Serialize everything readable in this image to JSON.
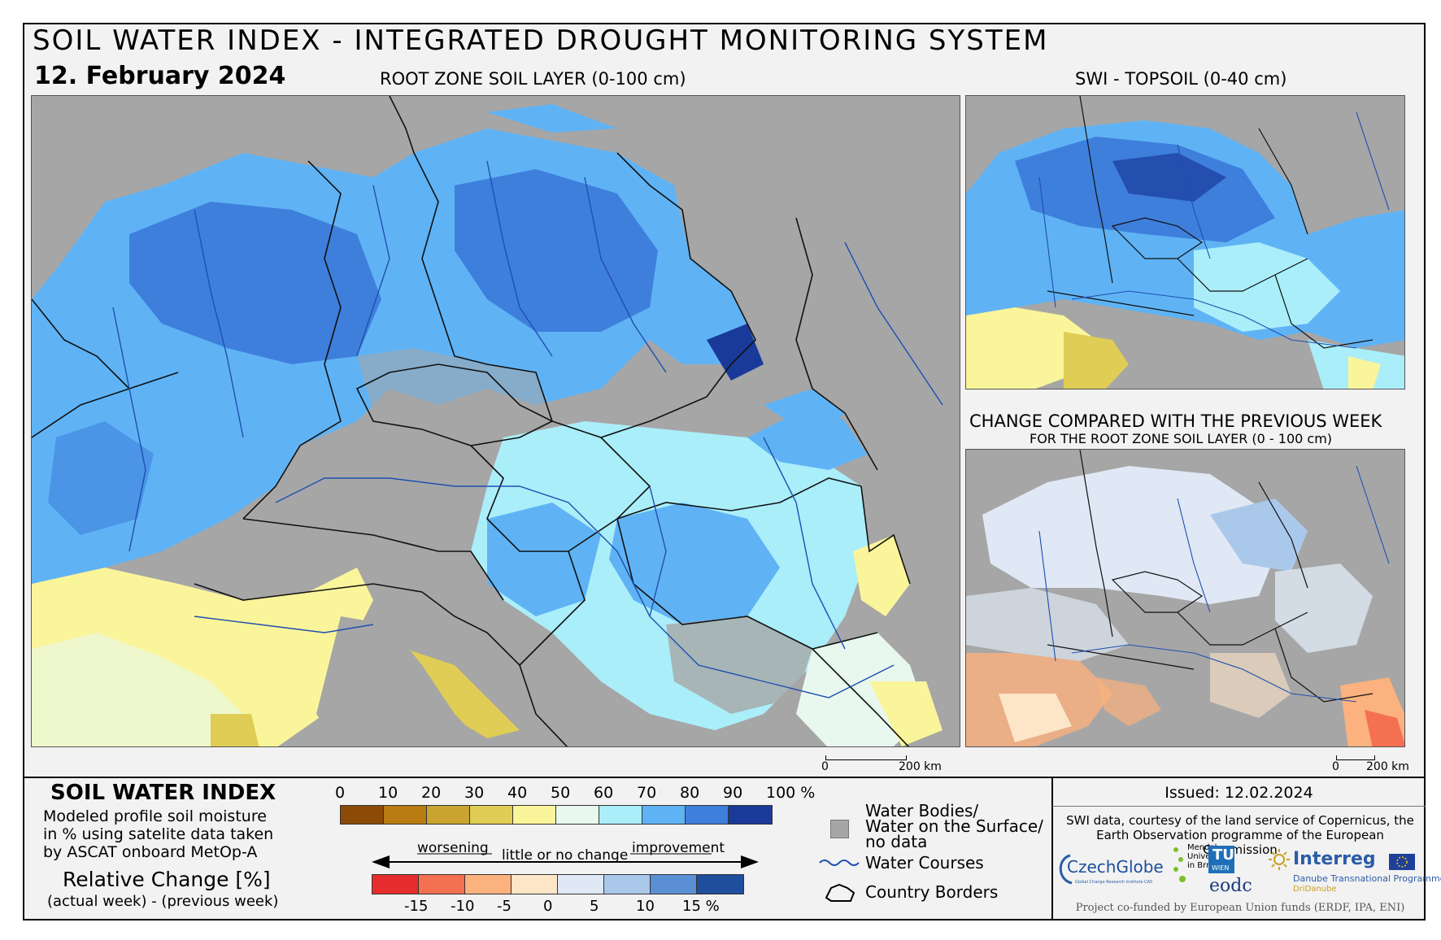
{
  "header": {
    "title": "SOIL WATER INDEX - INTEGRATED DROUGHT MONITORING SYSTEM",
    "date": "12. February 2024",
    "main_map_title": "ROOT ZONE SOIL LAYER (0-100 cm)",
    "topsoil_title": "SWI - TOPSOIL (0-40 cm)",
    "change_title": "CHANGE COMPARED WITH THE PREVIOUS WEEK",
    "change_subtitle": "FOR THE ROOT ZONE SOIL LAYER (0 - 100 cm)"
  },
  "scalebar": {
    "main": {
      "zero": "0",
      "end": "200 km"
    },
    "small": {
      "zero": "0",
      "end": "200 km"
    }
  },
  "legend": {
    "swi_title": "SOIL WATER INDEX",
    "swi_desc_1": "Modeled profile soil moisture",
    "swi_desc_2": "in % using satelite data taken",
    "swi_desc_3": "by ASCAT onboard MetOp-A",
    "rel_title": "Relative Change [%]",
    "rel_sub": "(actual week) - (previous week)",
    "swi_ticks": [
      "0",
      "10",
      "20",
      "30",
      "40",
      "50",
      "60",
      "70",
      "80",
      "90",
      "100 %"
    ],
    "swi_colors": [
      "#8b4a06",
      "#b97c12",
      "#c9a430",
      "#dfcd55",
      "#faf59a",
      "#e8f8ee",
      "#aaeefa",
      "#5fb3f5",
      "#3e7fdc",
      "#1a3a9a"
    ],
    "chg_ticks": [
      "-15",
      "-10",
      "-5",
      "0",
      "5",
      "10",
      "15 %"
    ],
    "chg_colors": [
      "#e52d2d",
      "#f47050",
      "#fbb27e",
      "#fde5c8",
      "#dfe8f4",
      "#aac8ea",
      "#5a8fd4",
      "#1f4f9c"
    ],
    "arrow_worsening": "worsening",
    "arrow_little": "little or no change",
    "arrow_improvement": "improvement",
    "water_bodies_1": "Water Bodies/",
    "water_bodies_2": "Water on the Surface/",
    "water_bodies_3": "no data",
    "water_courses": "Water Courses",
    "country_borders": "Country Borders"
  },
  "info": {
    "issued": "Issued: 12.02.2024",
    "credit_1": "SWI data, courtesy of the land service of Copernicus, the",
    "credit_2": "Earth Observation programme of the European Commission",
    "funded": "Project co-funded by European Union funds (ERDF, IPA, ENI)"
  },
  "logos": {
    "czechglobe": "CzechGlobe",
    "czechglobe_sub": "Global Change Research Institute CAS",
    "mendel_1": "Mendel",
    "mendel_2": "University",
    "mendel_3": "in Brno",
    "tu": "TU",
    "tu_sub": "WIEN",
    "eodc": "eodc",
    "interreg": "Interreg",
    "interreg_sub_1": "Danube Transnational Programme",
    "interreg_sub_2": "DriDanube"
  }
}
